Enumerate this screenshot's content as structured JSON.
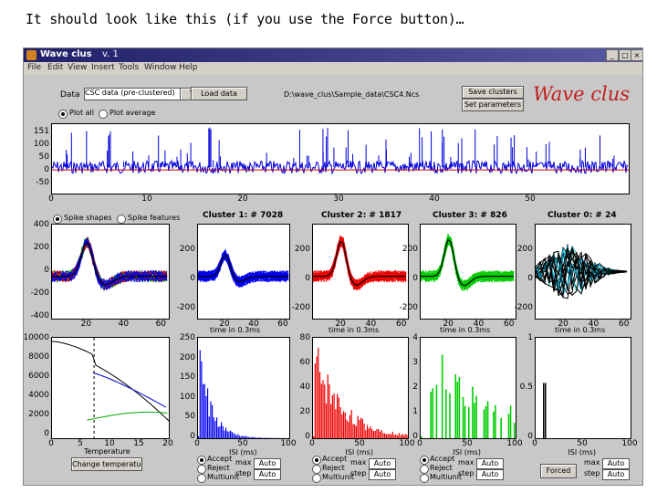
{
  "caption": "It should look like this (if you use the Force button)…",
  "window": {
    "title": "Wave clus",
    "version": "v. 1"
  },
  "menu": [
    "File",
    "Edit",
    "View",
    "Insert",
    "Tools",
    "Window",
    "Help"
  ],
  "toolbar": {
    "data_label": "Data",
    "data_select": "CSC data (pre-clustered)",
    "load_button": "Load data",
    "file_path": "D:\\wave_clus\\Sample_data\\CSC4.Ncs",
    "save_clusters_button": "Save clusters",
    "set_parameters_button": "Set parameters",
    "brand": "Wave clus"
  },
  "plot_mode": {
    "plot_all": "Plot all",
    "plot_average": "Plot average"
  },
  "spike_mode": {
    "shapes": "Spike shapes",
    "features": "Spike features"
  },
  "clusters": [
    {
      "title": "Cluster 1: # 7028",
      "color": "#0000ee"
    },
    {
      "title": "Cluster 2: # 1817",
      "color": "#ee0000"
    },
    {
      "title": "Cluster 3: # 826",
      "color": "#00cc00"
    },
    {
      "title": "Cluster 0: # 24",
      "color": "#000000"
    }
  ],
  "time_ms_label": "time in 0.3ms",
  "isi_label": "ISI (ms)",
  "temperature_label": "Temperature",
  "change_temperature_button": "Change temperature",
  "controls": {
    "accept": "Accept",
    "reject": "Reject",
    "fix": "Multiunit",
    "max_label": "max",
    "step_label": "step",
    "auto": "Auto",
    "forced": "Forced"
  },
  "signal_axis": {
    "yticks": [
      "151",
      "100",
      "50",
      "0",
      "-50"
    ],
    "xticks": [
      "0",
      "10",
      "20",
      "30",
      "40",
      "50"
    ]
  },
  "spike_yticks_left": [
    "400",
    "200",
    "0",
    "-200",
    "-400"
  ],
  "spike_yticks_small": [
    "200",
    "0",
    "-200"
  ],
  "spike_xticks": [
    "20",
    "40",
    "60"
  ],
  "temp_axis": {
    "yticks": [
      "10000",
      "8000",
      "6000",
      "4000",
      "2000",
      "0"
    ],
    "xticks": [
      "0",
      "5",
      "10",
      "15",
      "20"
    ]
  },
  "isi_axes": [
    {
      "yticks": [
        "250",
        "200",
        "150",
        "100",
        "50",
        "0"
      ]
    },
    {
      "yticks": [
        "80",
        "60",
        "40",
        "20",
        "0"
      ]
    },
    {
      "yticks": [
        "4",
        "3",
        "2",
        "1",
        "0"
      ]
    },
    {
      "yticks": [
        "1",
        "0.5",
        "0"
      ]
    }
  ],
  "isi_xticks": [
    "0",
    "50",
    "100"
  ]
}
